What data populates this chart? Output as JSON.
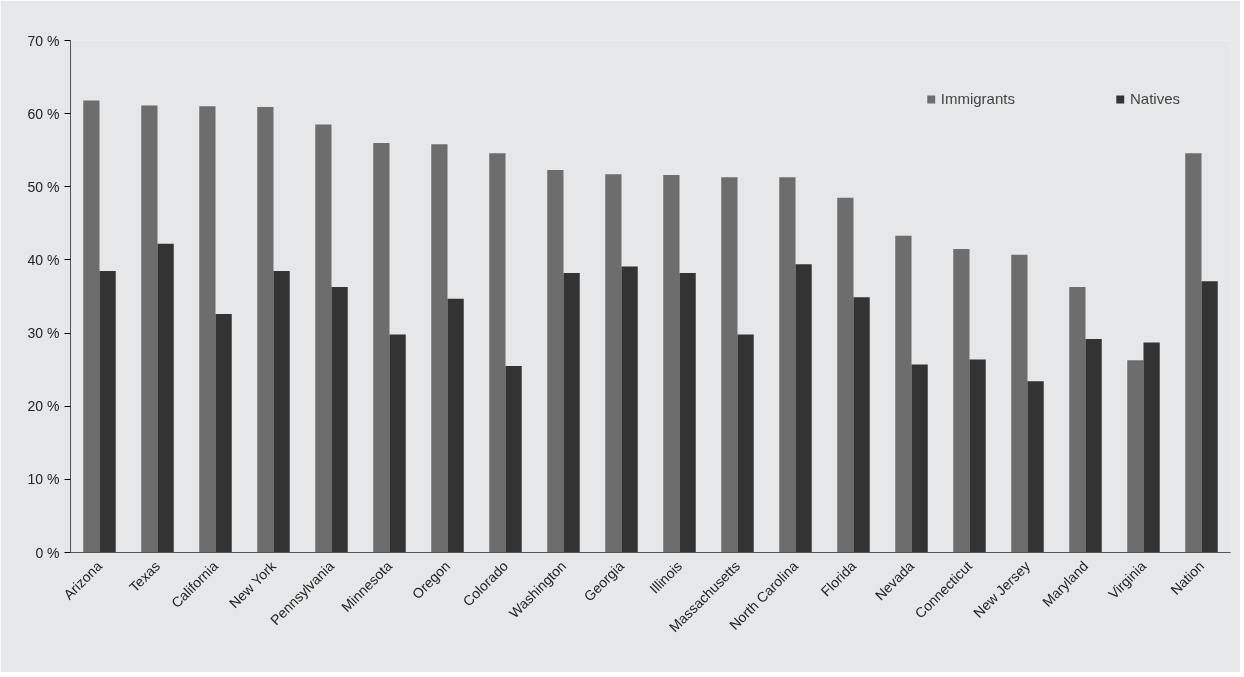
{
  "chart_data": {
    "type": "bar",
    "categories": [
      "Arizona",
      "Texas",
      "California",
      "New York",
      "Pennsylvania",
      "Minnesota",
      "Oregon",
      "Colorado",
      "Washington",
      "Georgia",
      "Illinois",
      "Massachusetts",
      "North Carolina",
      "Florida",
      "Nevada",
      "Connecticut",
      "New Jersey",
      "Maryland",
      "Virginia",
      "Nation"
    ],
    "series": [
      {
        "name": "Immigrants",
        "color": "#6d6d6d",
        "values": [
          61.8,
          61.1,
          61.0,
          60.9,
          58.5,
          56.0,
          55.8,
          54.6,
          52.3,
          51.7,
          51.6,
          51.3,
          51.3,
          48.5,
          43.3,
          41.5,
          40.7,
          36.3,
          26.3,
          54.6
        ]
      },
      {
        "name": "Natives",
        "color": "#333333",
        "values": [
          38.5,
          42.2,
          32.6,
          38.5,
          36.3,
          29.8,
          34.7,
          25.5,
          38.2,
          39.1,
          38.2,
          29.8,
          39.4,
          34.9,
          25.7,
          26.4,
          23.4,
          29.2,
          28.7,
          37.1
        ]
      }
    ],
    "ylim": [
      0,
      70
    ],
    "yticks": [
      {
        "value": 0,
        "label": "0 %"
      },
      {
        "value": 10,
        "label": "10 %"
      },
      {
        "value": 20,
        "label": "20 %"
      },
      {
        "value": 30,
        "label": "30 %"
      },
      {
        "value": 40,
        "label": "40 %"
      },
      {
        "value": 50,
        "label": "50 %"
      },
      {
        "value": 60,
        "label": "60 %"
      },
      {
        "value": 70,
        "label": "70 %"
      }
    ],
    "legend": "top right"
  }
}
